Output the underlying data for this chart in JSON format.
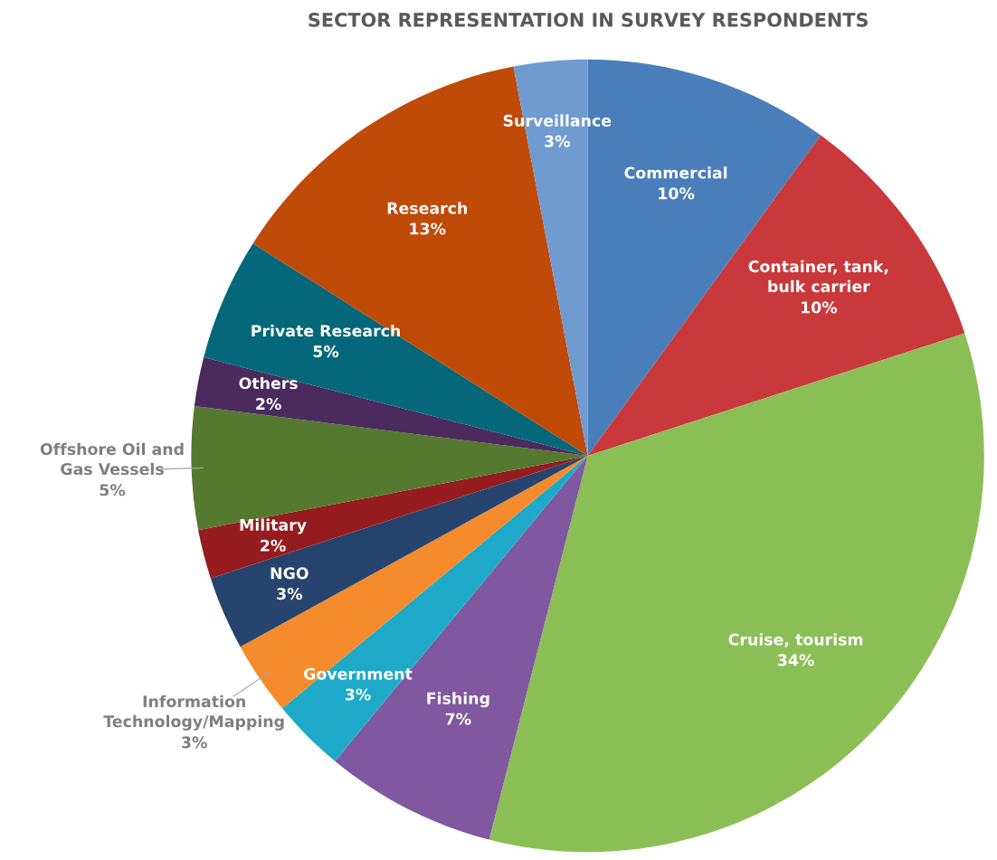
{
  "chart_data": {
    "type": "pie",
    "title": "SECTOR REPRESENTATION IN SURVEY RESPONDENTS",
    "categories": [
      "Commercial",
      "Container, tank, bulk carrier",
      "Cruise, tourism",
      "Fishing",
      "Government",
      "Information Technology/Mapping",
      "NGO",
      "Military",
      "Offshore Oil and Gas Vessels",
      "Others",
      "Private Research",
      "Research",
      "Surveillance"
    ],
    "values": [
      10,
      10,
      34,
      7,
      3,
      3,
      3,
      2,
      5,
      2,
      5,
      13,
      3
    ],
    "colors": [
      "#4a7ebb",
      "#c9393b",
      "#8bbf56",
      "#7f58a0",
      "#1fa9c8",
      "#f58b2c",
      "#27446e",
      "#961c1f",
      "#557a2f",
      "#4b2a5e",
      "#04687a",
      "#c04a07",
      "#6f9bd1"
    ],
    "value_labels": [
      "10%",
      "10%",
      "34%",
      "7%",
      "3%",
      "3%",
      "3%",
      "2%",
      "5%",
      "2%",
      "5%",
      "13%",
      "3%"
    ],
    "legend": false
  }
}
